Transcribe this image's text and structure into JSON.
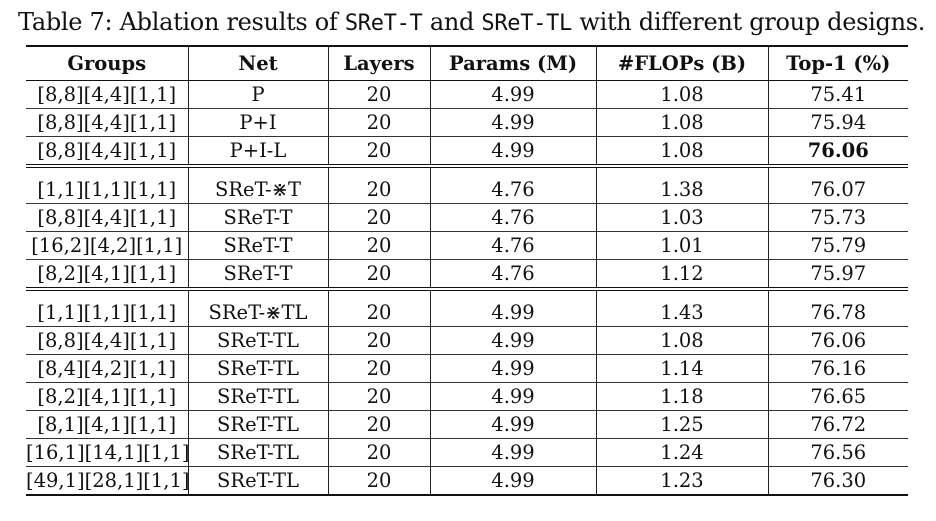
{
  "caption": {
    "prefix": "Table 7: Ablation results of ",
    "model1": "SReT-T",
    "and": " and ",
    "model2": "SReT-TL",
    "suffix": " with different group designs."
  },
  "table": {
    "headers": [
      "Groups",
      "Net",
      "Layers",
      "Params (M)",
      "#FLOPs (B)",
      "Top-1 (%)"
    ],
    "groups": [
      [
        [
          "[8,8][4,4][1,1]",
          "P",
          "20",
          "4.99",
          "1.08",
          "75.41"
        ],
        [
          "[8,8][4,4][1,1]",
          "P+I",
          "20",
          "4.99",
          "1.08",
          "75.94"
        ],
        [
          "[8,8][4,4][1,1]",
          "P+I-L",
          "20",
          "4.99",
          "1.08",
          "76.06"
        ]
      ],
      [
        [
          "[1,1][1,1][1,1]",
          "SReT-⋇T",
          "20",
          "4.76",
          "1.38",
          "76.07"
        ],
        [
          "[8,8][4,4][1,1]",
          "SReT-T",
          "20",
          "4.76",
          "1.03",
          "75.73"
        ],
        [
          "[16,2][4,2][1,1]",
          "SReT-T",
          "20",
          "4.76",
          "1.01",
          "75.79"
        ],
        [
          "[8,2][4,1][1,1]",
          "SReT-T",
          "20",
          "4.76",
          "1.12",
          "75.97"
        ]
      ],
      [
        [
          "[1,1][1,1][1,1]",
          "SReT-⋇TL",
          "20",
          "4.99",
          "1.43",
          "76.78"
        ],
        [
          "[8,8][4,4][1,1]",
          "SReT-TL",
          "20",
          "4.99",
          "1.08",
          "76.06"
        ],
        [
          "[8,4][4,2][1,1]",
          "SReT-TL",
          "20",
          "4.99",
          "1.14",
          "76.16"
        ],
        [
          "[8,2][4,1][1,1]",
          "SReT-TL",
          "20",
          "4.99",
          "1.18",
          "76.65"
        ],
        [
          "[8,1][4,1][1,1]",
          "SReT-TL",
          "20",
          "4.99",
          "1.25",
          "76.72"
        ],
        [
          "[16,1][14,1][1,1]",
          "SReT-TL",
          "20",
          "4.99",
          "1.24",
          "76.56"
        ],
        [
          "[49,1][28,1][1,1]",
          "SReT-TL",
          "20",
          "4.99",
          "1.23",
          "76.30"
        ]
      ]
    ]
  }
}
